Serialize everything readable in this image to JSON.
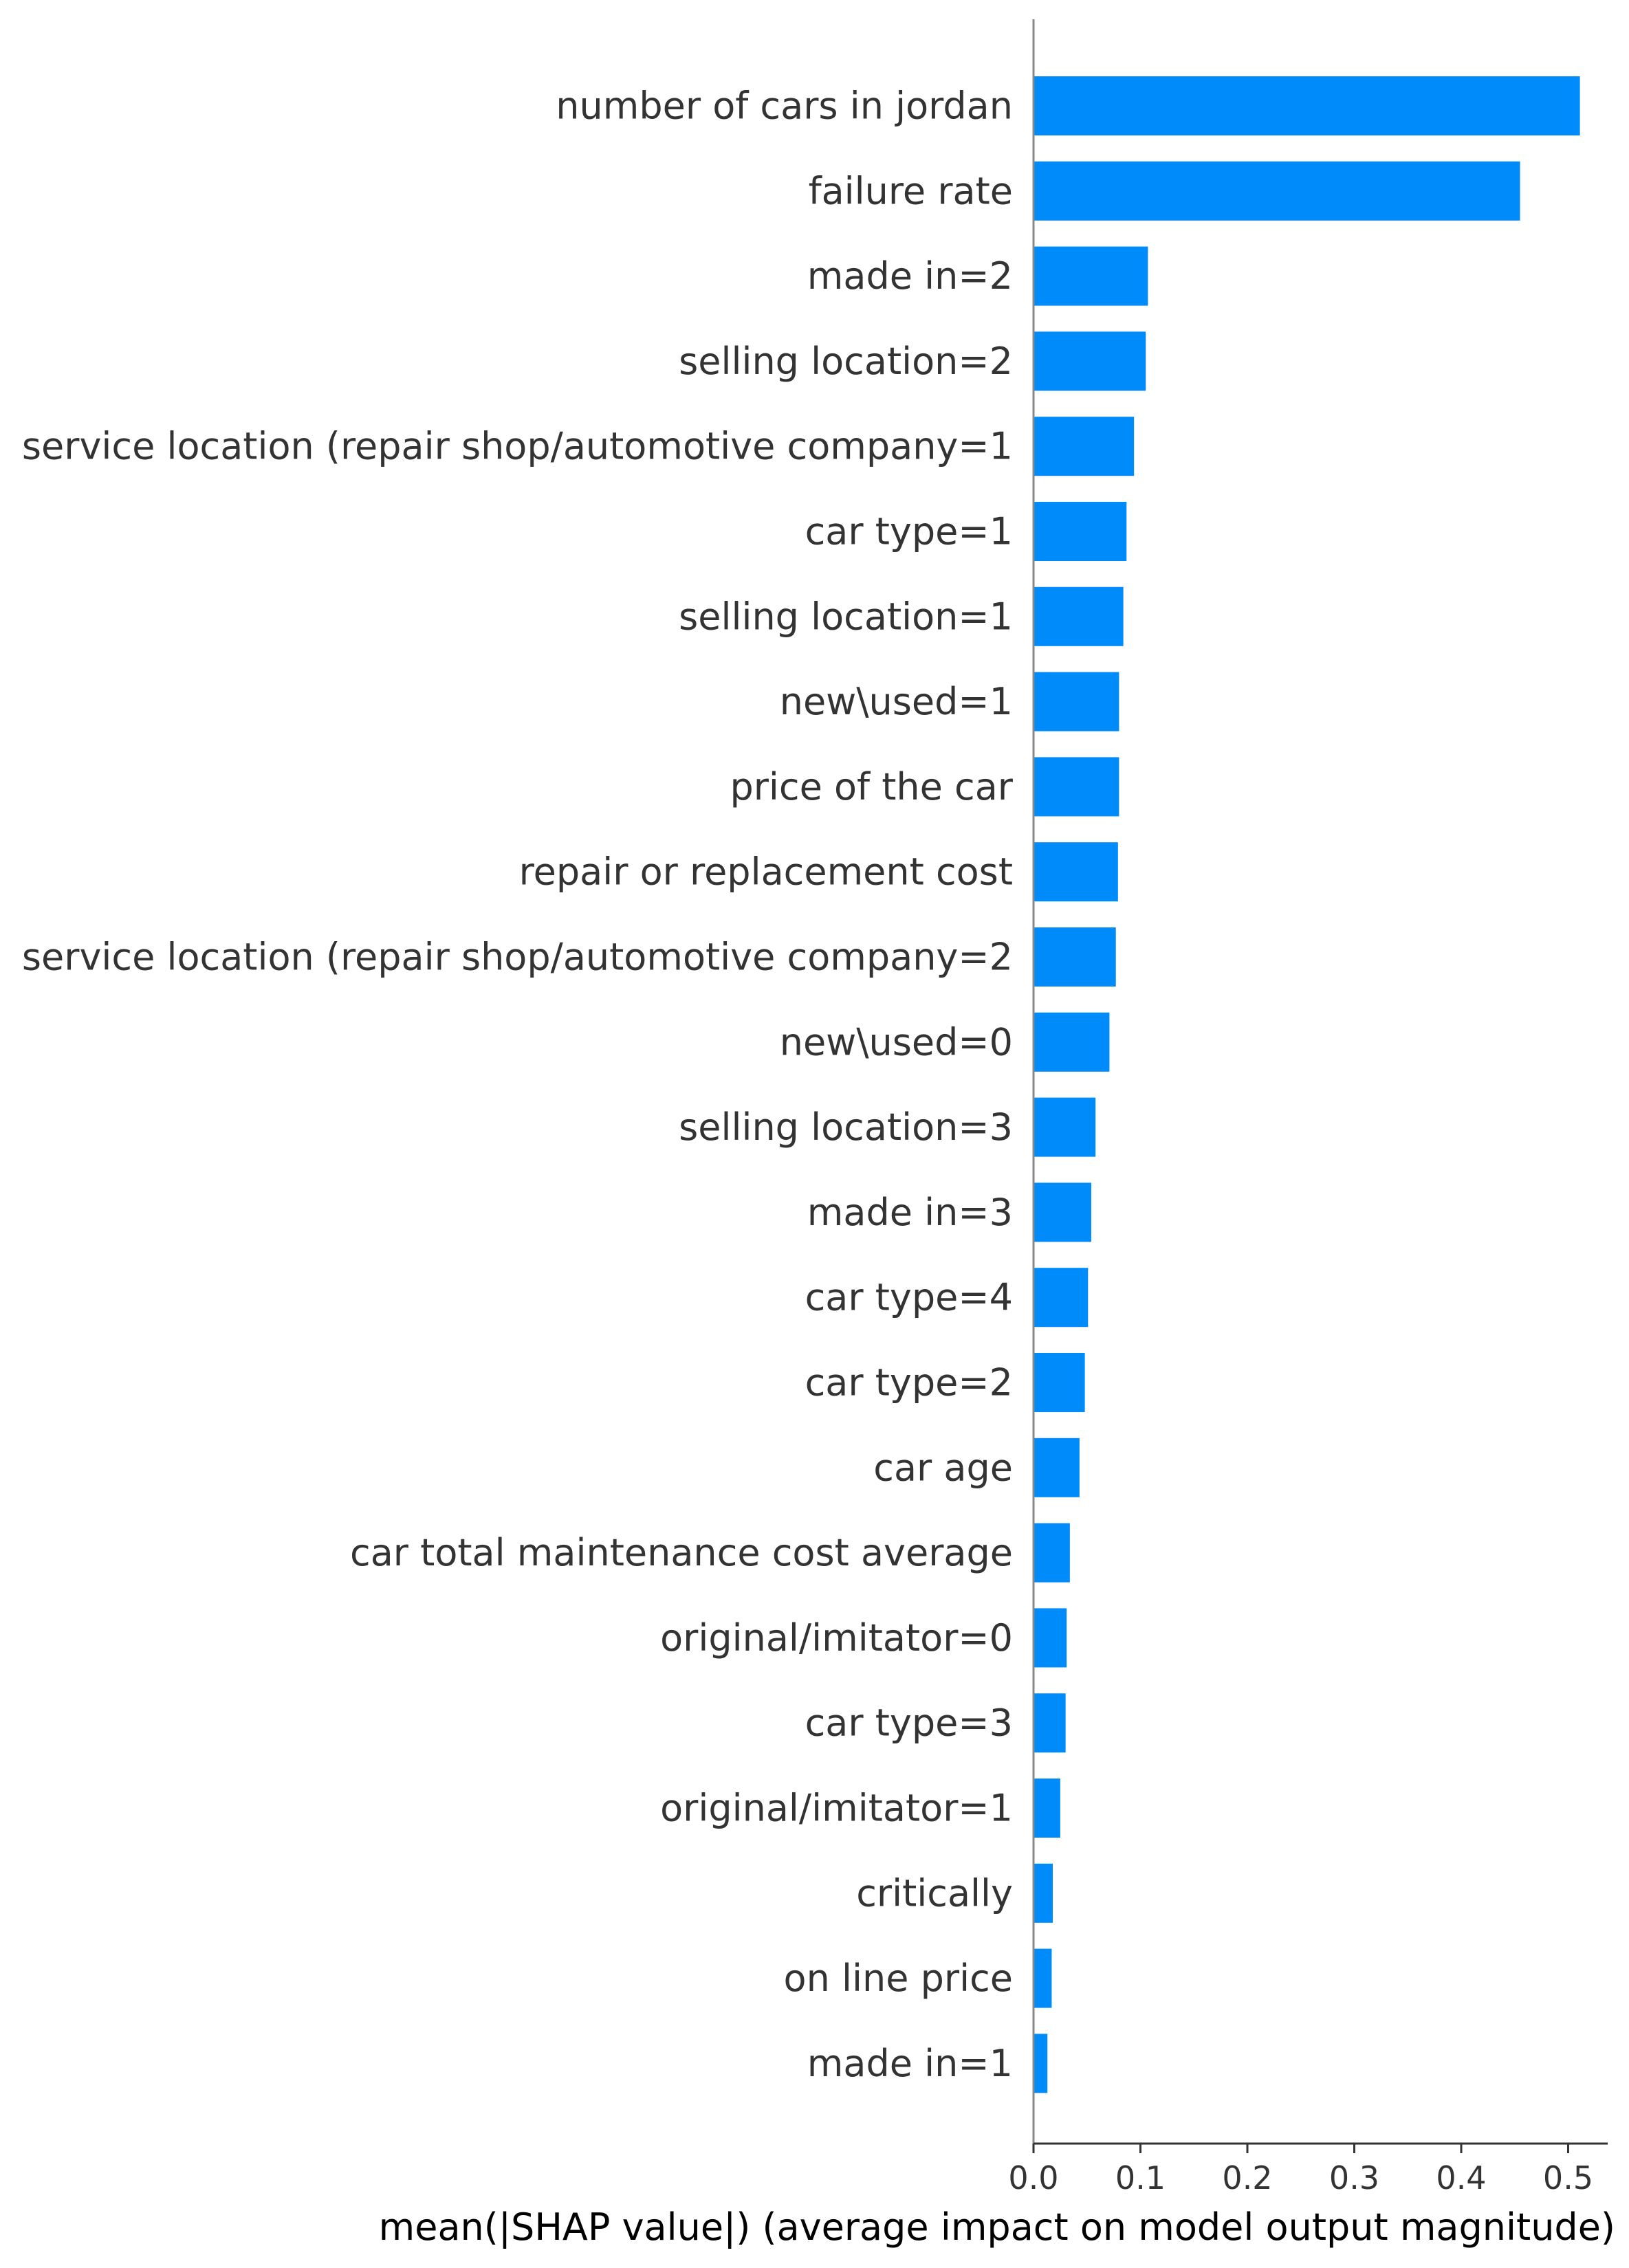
{
  "chart_data": {
    "type": "bar",
    "orientation": "horizontal",
    "categories": [
      "number of cars in jordan",
      "failure rate",
      "made in=2",
      "selling location=2",
      "service location (repair shop/automotive company=1",
      "car type=1",
      "selling location=1",
      "new\\used=1",
      "price of the car",
      "repair or replacement cost",
      "service location (repair shop/automotive company=2",
      "new\\used=0",
      "selling location=3",
      "made in=3",
      "car type=4",
      "car type=2",
      "car age",
      "car total maintenance cost average",
      "original/imitator=0",
      "car type=3",
      "original/imitator=1",
      "critically",
      "on line price",
      "made in=1"
    ],
    "values": [
      0.511,
      0.455,
      0.107,
      0.105,
      0.094,
      0.087,
      0.084,
      0.08,
      0.08,
      0.079,
      0.077,
      0.071,
      0.058,
      0.054,
      0.051,
      0.048,
      0.043,
      0.034,
      0.031,
      0.03,
      0.025,
      0.018,
      0.017,
      0.013
    ],
    "xlabel": "mean(|SHAP value|) (average impact on model output magnitude)",
    "xticks": [
      "0.0",
      "0.1",
      "0.2",
      "0.3",
      "0.4",
      "0.5"
    ],
    "xlim": [
      0,
      0.537
    ],
    "grid": false,
    "bar_color": "#008bfb"
  }
}
